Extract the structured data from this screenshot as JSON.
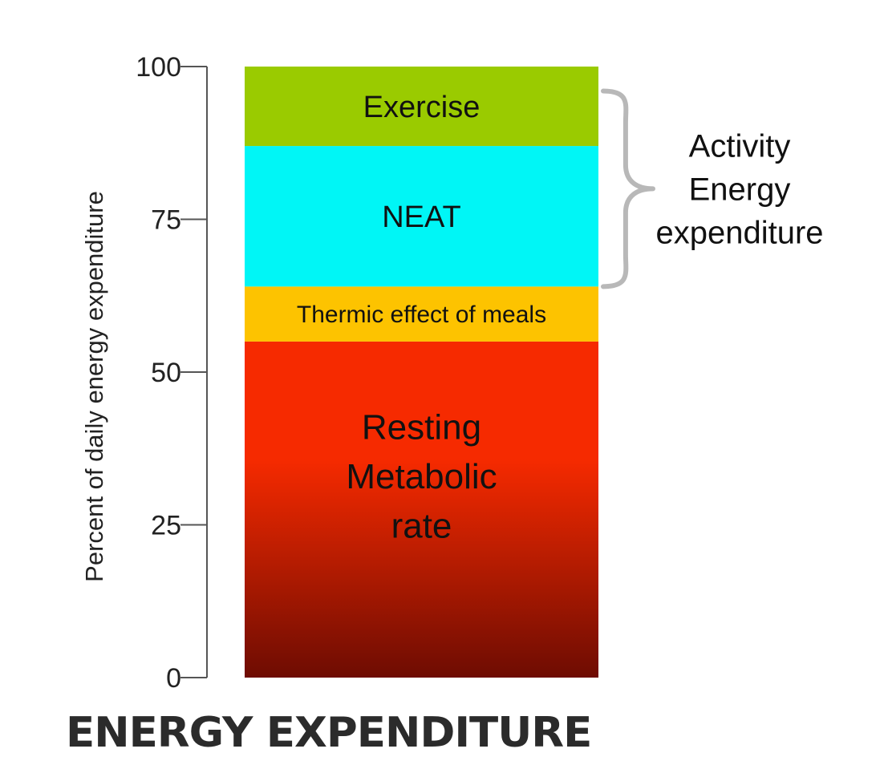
{
  "chart_data": {
    "type": "bar",
    "stacked": true,
    "ylabel": "Percent of daily energy expenditure",
    "ylim": [
      0,
      100
    ],
    "yticks": [
      0,
      25,
      50,
      75,
      100
    ],
    "segments": [
      {
        "name": "Resting Metabolic rate",
        "lines": [
          "Resting",
          "Metabolic",
          "rate"
        ],
        "from": 0,
        "to": 55,
        "color": "#f62a00",
        "color_bottom": "#6e0c02"
      },
      {
        "name": "Thermic effect of meals",
        "lines": [
          "Thermic effect of meals"
        ],
        "from": 55,
        "to": 64,
        "color": "#fdc300"
      },
      {
        "name": "NEAT",
        "lines": [
          "NEAT"
        ],
        "from": 64,
        "to": 87,
        "color": "#00f6f6"
      },
      {
        "name": "Exercise",
        "lines": [
          "Exercise"
        ],
        "from": 87,
        "to": 100,
        "color": "#9acb00"
      }
    ],
    "bracket": {
      "from": 64,
      "to": 96,
      "lines": [
        "Activity",
        "Energy",
        "expenditure"
      ]
    }
  },
  "caption": "ENERGY EXPENDITURE"
}
